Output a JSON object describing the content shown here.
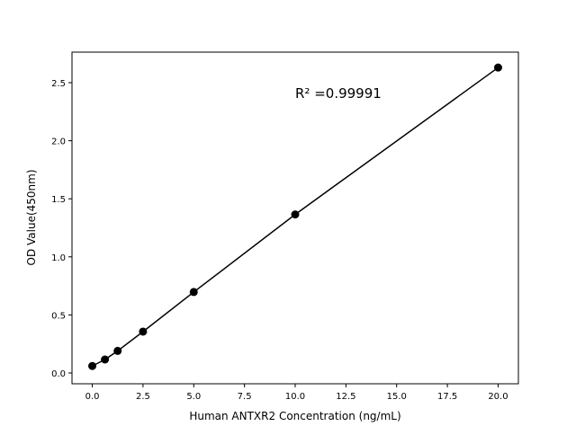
{
  "chart_data": {
    "type": "line",
    "title": "",
    "xlabel": "Human ANTXR2 Concentration (ng/mL)",
    "ylabel": "OD Value(450nm)",
    "annotation": "R² =0.99991",
    "xlim": [
      -1.0,
      21.0
    ],
    "ylim": [
      -0.093,
      2.763
    ],
    "xticks": [
      0.0,
      2.5,
      5.0,
      7.5,
      10.0,
      12.5,
      15.0,
      17.5,
      20.0
    ],
    "xtick_labels": [
      "0.0",
      "2.5",
      "5.0",
      "7.5",
      "10.0",
      "12.5",
      "15.0",
      "17.5",
      "20.0"
    ],
    "yticks": [
      0.0,
      0.5,
      1.0,
      1.5,
      2.0,
      2.5
    ],
    "ytick_labels": [
      "0.0",
      "0.5",
      "1.0",
      "1.5",
      "2.0",
      "2.5"
    ],
    "grid": false,
    "x": [
      0,
      0.625,
      1.25,
      2.5,
      5,
      10,
      20
    ],
    "y": [
      0.06,
      0.116,
      0.19,
      0.356,
      0.697,
      1.365,
      2.63
    ],
    "color": "#000000"
  }
}
